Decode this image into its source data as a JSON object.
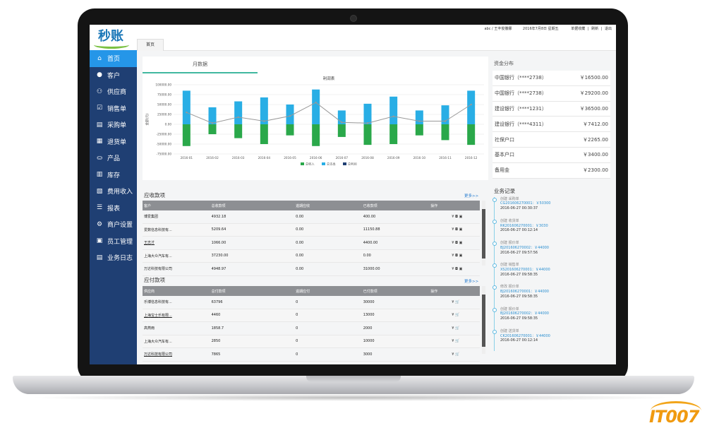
{
  "app": {
    "logo": "秒账",
    "top_info": {
      "user": "abc / 王丰俊撒娜",
      "date": "2016年7月8日 星期五",
      "links": [
        "单据收藏",
        "|",
        "刷新",
        "|",
        "退出"
      ]
    },
    "tab": "首页"
  },
  "sidebar": {
    "items": [
      {
        "label": "首页",
        "icon": "home-icon",
        "glyph": "⌂",
        "active": true
      },
      {
        "label": "客户",
        "icon": "user-icon",
        "glyph": "●"
      },
      {
        "label": "供应商",
        "icon": "users-icon",
        "glyph": "⚇"
      },
      {
        "label": "销售单",
        "icon": "check-doc-icon",
        "glyph": "☑"
      },
      {
        "label": "采购单",
        "icon": "doc-icon",
        "glyph": "▤"
      },
      {
        "label": "退货单",
        "icon": "return-doc-icon",
        "glyph": "▦"
      },
      {
        "label": "产品",
        "icon": "basket-icon",
        "glyph": "⛀"
      },
      {
        "label": "库存",
        "icon": "clipboard-icon",
        "glyph": "▥"
      },
      {
        "label": "费用收入",
        "icon": "ledger-icon",
        "glyph": "▧"
      },
      {
        "label": "报表",
        "icon": "list-icon",
        "glyph": "☰"
      },
      {
        "label": "商户设置",
        "icon": "gear-icon",
        "glyph": "⚙"
      },
      {
        "label": "员工管理",
        "icon": "id-card-icon",
        "glyph": "▣"
      },
      {
        "label": "业务日志",
        "icon": "log-icon",
        "glyph": "▤"
      }
    ]
  },
  "chart_panel": {
    "tab": "月数据"
  },
  "chart_data": {
    "type": "bar",
    "title": "利润表",
    "ylabel": "金额(元)",
    "categories": [
      "2016-01",
      "2016-02",
      "2016-03",
      "2016-04",
      "2016-05",
      "2016-06",
      "2016-07",
      "2016-08",
      "2016-09",
      "2016-10",
      "2016-11",
      "2016-12"
    ],
    "ylim": [
      -75000,
      100000
    ],
    "yticks": [
      "100000.00",
      "75000.00",
      "50000.00",
      "25000.00",
      "0.00",
      "-25000.00",
      "-50000.00",
      "-75000.00"
    ],
    "series": [
      {
        "name": "总收入",
        "type": "bar",
        "color": "#2aa84a",
        "values": [
          -55000,
          -25000,
          -35000,
          -50000,
          -28000,
          -55000,
          -32000,
          -52000,
          -50000,
          -28000,
          -40000,
          -52000
        ]
      },
      {
        "name": "总支出",
        "type": "bar",
        "color": "#29aee5",
        "values": [
          85000,
          43000,
          58000,
          68000,
          50000,
          88000,
          35000,
          52000,
          70000,
          35000,
          48000,
          85000
        ]
      },
      {
        "name": "总利润",
        "type": "line",
        "color": "#999999",
        "values": [
          30000,
          3000,
          18000,
          8000,
          21000,
          55000,
          5000,
          3000,
          20000,
          8000,
          8000,
          50000
        ]
      }
    ],
    "legend": "bottom",
    "grid": true
  },
  "receivables": {
    "title": "应收款项",
    "more": "更多>>",
    "columns": [
      "客户",
      "总收款项",
      "逾期应收",
      "已收款项",
      "操作"
    ],
    "rows": [
      {
        "name": "博爱集团",
        "total": "4932.18",
        "overdue": "0.00",
        "received": "400.00",
        "link": false
      },
      {
        "name": "爱数信息科技有...",
        "total": "5209.64",
        "overdue": "0.00",
        "received": "11150.88",
        "link": false
      },
      {
        "name": "王志才",
        "total": "1066.00",
        "overdue": "0.00",
        "received": "4400.00",
        "link": true
      },
      {
        "name": "上海大众汽车有...",
        "total": "37230.00",
        "overdue": "0.00",
        "received": "0.00",
        "link": false
      },
      {
        "name": "万达科技有限公司",
        "total": "4948.97",
        "overdue": "0.00",
        "received": "31000.00",
        "link": false
      }
    ],
    "actions": "¥ ◘ ▣"
  },
  "payables": {
    "title": "应付款项",
    "more": "更多>>",
    "columns": [
      "供应商",
      "总付款项",
      "逾期应付",
      "已付款项",
      "操作"
    ],
    "rows": [
      {
        "name": "乐博信息科技有...",
        "total": "63796",
        "overdue": "0",
        "paid": "30000",
        "link": false
      },
      {
        "name": "上海宝士乐有限...",
        "total": "4460",
        "overdue": "0",
        "paid": "13000",
        "link": true
      },
      {
        "name": "高燕雨",
        "total": "1858.7",
        "overdue": "0",
        "paid": "2000",
        "link": false
      },
      {
        "name": "上海大众汽车有...",
        "total": "2850",
        "overdue": "0",
        "paid": "10000",
        "link": false
      },
      {
        "name": "万达科技有限公司",
        "total": "7865",
        "overdue": "0",
        "paid": "3000",
        "link": true
      }
    ],
    "actions": "¥ 🛒"
  },
  "funds": {
    "title": "资金分布",
    "rows": [
      {
        "name": "中国银行（****2738）",
        "amount": "￥16500.00"
      },
      {
        "name": "中国银行（****2738）",
        "amount": "￥29200.00"
      },
      {
        "name": "建设银行（****1231）",
        "amount": "￥36500.00"
      },
      {
        "name": "建设银行（****4311）",
        "amount": "￥7412.00"
      },
      {
        "name": "社保户口",
        "amount": "￥2265.00"
      },
      {
        "name": "基本户口",
        "amount": "￥3400.00"
      },
      {
        "name": "备用金",
        "amount": "￥2300.00"
      }
    ]
  },
  "records": {
    "title": "业务记录",
    "items": [
      {
        "action": "创建 采购单",
        "id": "CG201606270001：￥50300",
        "time": "2016-06-27 00:30:37"
      },
      {
        "action": "创建 收货单",
        "id": "RK201606270001：￥3030",
        "time": "2016-06-27 00:12:14"
      },
      {
        "action": "创建 报价单",
        "id": "BJ201606270002：￥44000",
        "time": "2016-06-27 09:57:56"
      },
      {
        "action": "创建 销售单",
        "id": "XS201606270001：￥44000",
        "time": "2016-06-27 09:58:35"
      },
      {
        "action": "修改 报价单",
        "id": "BJ201606270001：￥44000",
        "time": "2016-06-27 09:58:35"
      },
      {
        "action": "创建 报价单",
        "id": "BJ201606270002：￥44000",
        "time": "2016-06-27 09:58:35"
      },
      {
        "action": "创建 送货单",
        "id": "CK201606270001：￥44000",
        "time": "2016-06-27 00:12:14"
      }
    ]
  },
  "watermark": "IT007"
}
